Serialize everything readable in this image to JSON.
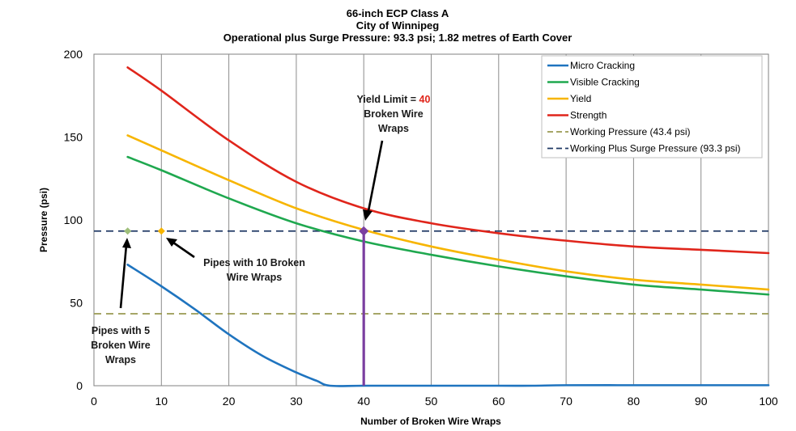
{
  "chart_data": {
    "type": "line",
    "title_lines": [
      "66-inch ECP Class A",
      "City of Winnipeg",
      "Operational plus Surge Pressure:  93.3 psi; 1.82 metres of Earth Cover"
    ],
    "xlabel": "Number of Broken Wire Wraps",
    "ylabel": "Pressure (psi)",
    "xlim": [
      0,
      100
    ],
    "ylim": [
      0,
      200
    ],
    "x_ticks": [
      0,
      10,
      20,
      30,
      40,
      50,
      60,
      70,
      80,
      90,
      100
    ],
    "y_ticks": [
      0,
      50,
      100,
      150,
      200
    ],
    "grid": "vertical",
    "legend_position": "top-right",
    "series": [
      {
        "name": "Micro Cracking",
        "color": "#1f74bf",
        "style": "solid",
        "x": [
          5,
          10,
          15,
          20,
          25,
          30,
          33,
          35,
          40,
          50,
          60,
          65,
          70,
          80,
          90,
          100
        ],
        "values": [
          73,
          60,
          46,
          31,
          18,
          8,
          3,
          0,
          0,
          0,
          0,
          0,
          0.3,
          0.3,
          0.3,
          0.3
        ]
      },
      {
        "name": "Visible Cracking",
        "color": "#1fa84f",
        "style": "solid",
        "x": [
          5,
          10,
          20,
          30,
          40,
          50,
          60,
          70,
          80,
          90,
          100
        ],
        "values": [
          138,
          130,
          113,
          98,
          87,
          79,
          72,
          66,
          61,
          58,
          55
        ]
      },
      {
        "name": "Yield",
        "color": "#f7b500",
        "style": "solid",
        "x": [
          5,
          10,
          20,
          30,
          40,
          50,
          60,
          70,
          80,
          90,
          100
        ],
        "values": [
          151,
          142,
          124,
          107,
          94,
          84,
          76,
          69,
          64,
          61,
          58
        ]
      },
      {
        "name": "Strength",
        "color": "#e0251b",
        "style": "solid",
        "x": [
          5,
          10,
          20,
          30,
          40,
          50,
          60,
          70,
          80,
          90,
          100
        ],
        "values": [
          192,
          178,
          148,
          123,
          107,
          98,
          92,
          87.5,
          84,
          82,
          80
        ]
      },
      {
        "name": "Working Pressure (43.4 psi)",
        "color": "#9a9a52",
        "style": "dashed",
        "x": [
          0,
          100
        ],
        "values": [
          43.4,
          43.4
        ]
      },
      {
        "name": "Working Plus Surge Pressure (93.3 psi)",
        "color": "#1f3864",
        "style": "dashed",
        "x": [
          0,
          100
        ],
        "values": [
          93.3,
          93.3
        ]
      }
    ],
    "markers": [
      {
        "name": "five-wraps-marker",
        "x": 5,
        "y": 93.3,
        "color": "#9fbf7a",
        "shape": "diamond"
      },
      {
        "name": "ten-wraps-marker",
        "x": 10,
        "y": 93.3,
        "color": "#f7b500",
        "shape": "diamond"
      },
      {
        "name": "yield-limit-marker",
        "x": 40,
        "y": 93.3,
        "color": "#7b3fa0",
        "shape": "diamond"
      }
    ],
    "yield_limit_line": {
      "x": 40,
      "from": 0,
      "to": 93.3,
      "color": "#7b3fa0"
    },
    "annotations": {
      "yield": {
        "prefix": "Yield Limit = ",
        "value": "40",
        "line2": "Broken Wire",
        "line3": "Wraps"
      },
      "ten": {
        "line1": "Pipes with 10 Broken",
        "line2": "Wire Wraps"
      },
      "five": {
        "line1": "Pipes with 5",
        "line2": "Broken Wire",
        "line3": "Wraps"
      }
    }
  }
}
